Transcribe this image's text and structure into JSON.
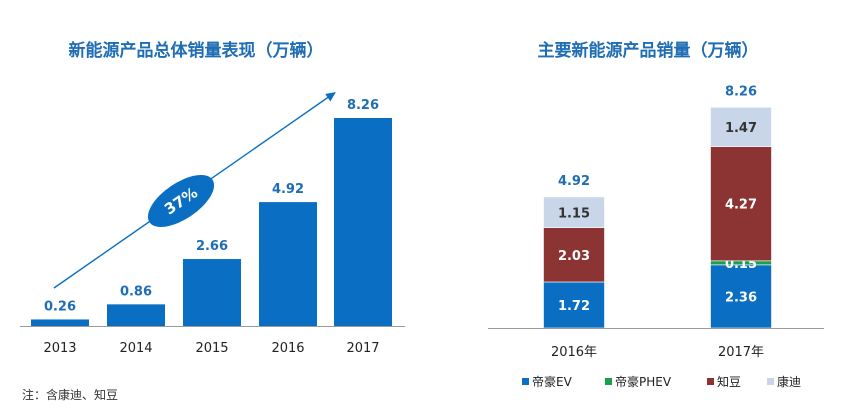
{
  "colors": {
    "primary": "#0a6fc2",
    "title": "#1f6db4",
    "label": "#1f6db4",
    "axis": "#9a9a9a",
    "ev": "#0a6fc2",
    "phev": "#1aa04a",
    "zhidou": "#8b3433",
    "kangdi": "#c9d6ea"
  },
  "note": "注：含康迪、知豆",
  "chart_data": [
    {
      "type": "bar",
      "title": "新能源产品总体销量表现（万辆）",
      "categories": [
        "2013",
        "2014",
        "2015",
        "2016",
        "2017"
      ],
      "values": [
        0.26,
        0.86,
        2.66,
        4.92,
        8.26
      ],
      "value_labels": [
        "0.26",
        "0.86",
        "2.66",
        "4.92",
        "8.26"
      ],
      "growth_label": "37%",
      "ylim": [
        0,
        9
      ],
      "grid": false,
      "legend": "none"
    },
    {
      "type": "bar",
      "stacked": true,
      "title": "主要新能源产品销量（万辆）",
      "categories": [
        "2016年",
        "2017年"
      ],
      "totals": [
        "4.92",
        "8.26"
      ],
      "series": [
        {
          "name": "帝豪EV",
          "color_key": "ev",
          "values": [
            1.72,
            2.36
          ],
          "labels": [
            "1.72",
            "2.36"
          ]
        },
        {
          "name": "帝豪PHEV",
          "color_key": "phev",
          "values": [
            0,
            0.15
          ],
          "labels": [
            "",
            "0.15"
          ]
        },
        {
          "name": "知豆",
          "color_key": "zhidou",
          "values": [
            2.03,
            4.27
          ],
          "labels": [
            "2.03",
            "4.27"
          ]
        },
        {
          "name": "康迪",
          "color_key": "kangdi",
          "values": [
            1.15,
            1.47
          ],
          "labels": [
            "1.15",
            "1.47"
          ]
        }
      ],
      "ylim": [
        0,
        9
      ],
      "grid": false,
      "legend": "bottom"
    }
  ]
}
